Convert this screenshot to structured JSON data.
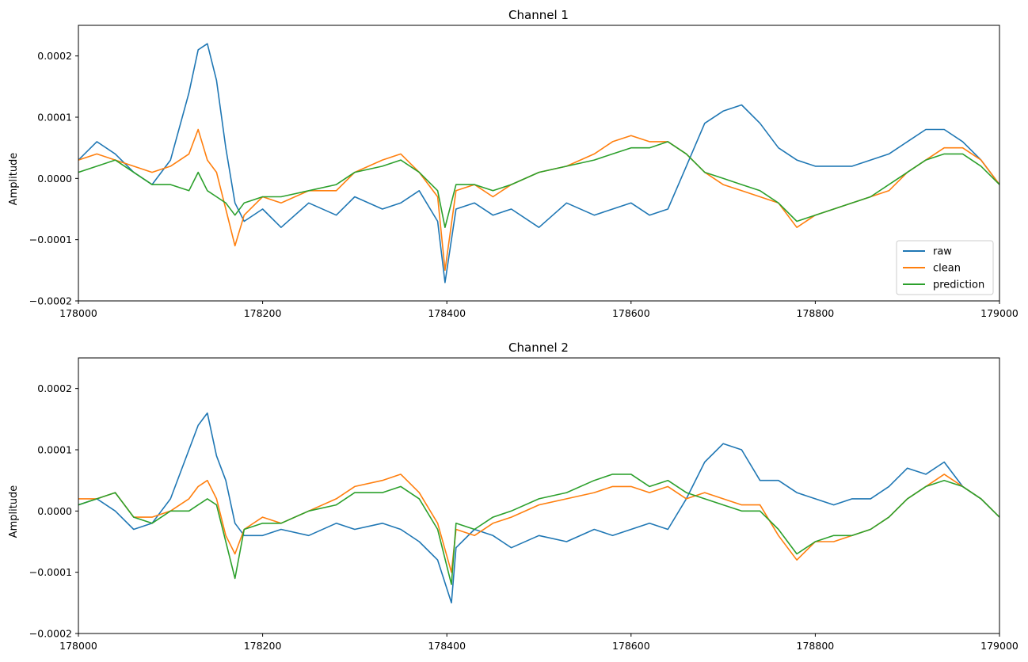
{
  "chart_data": [
    {
      "type": "line",
      "title": "Channel 1",
      "xlabel": "",
      "ylabel": "Amplitude",
      "xlim": [
        178000,
        179000
      ],
      "ylim": [
        -0.0002,
        0.00025
      ],
      "xticks": [
        178000,
        178200,
        178400,
        178600,
        178800,
        179000
      ],
      "xtick_labels": [
        "178000",
        "178200",
        "178400",
        "178600",
        "178800",
        "179000"
      ],
      "yticks": [
        -0.0002,
        -0.0001,
        0,
        0.0001,
        0.0002
      ],
      "ytick_labels": [
        "−0.0002",
        "−0.0001",
        "0.0000",
        "0.0001",
        "0.0002"
      ],
      "grid": false,
      "legend": {
        "placement": "lower-right",
        "entries": [
          "raw",
          "clean",
          "prediction"
        ]
      },
      "x": [
        178000,
        178020,
        178040,
        178060,
        178080,
        178100,
        178120,
        178130,
        178140,
        178150,
        178160,
        178170,
        178180,
        178200,
        178220,
        178250,
        178280,
        178300,
        178330,
        178350,
        178370,
        178390,
        178398,
        178410,
        178430,
        178450,
        178470,
        178500,
        178530,
        178560,
        178580,
        178600,
        178620,
        178640,
        178660,
        178680,
        178700,
        178720,
        178740,
        178760,
        178780,
        178800,
        178820,
        178840,
        178860,
        178880,
        178900,
        178920,
        178940,
        178960,
        178980,
        179000
      ],
      "series": [
        {
          "name": "raw",
          "color": "#1f77b4",
          "values": [
            3e-05,
            6e-05,
            4e-05,
            1e-05,
            -1e-05,
            3e-05,
            0.00014,
            0.00021,
            0.00022,
            0.00016,
            5e-05,
            -4e-05,
            -7e-05,
            -5e-05,
            -8e-05,
            -4e-05,
            -6e-05,
            -3e-05,
            -5e-05,
            -4e-05,
            -2e-05,
            -7e-05,
            -0.00017,
            -5e-05,
            -4e-05,
            -6e-05,
            -5e-05,
            -8e-05,
            -4e-05,
            -6e-05,
            -5e-05,
            -4e-05,
            -6e-05,
            -5e-05,
            2e-05,
            9e-05,
            0.00011,
            0.00012,
            9e-05,
            5e-05,
            3e-05,
            2e-05,
            2e-05,
            2e-05,
            3e-05,
            4e-05,
            6e-05,
            8e-05,
            8e-05,
            6e-05,
            3e-05,
            -1e-05
          ]
        },
        {
          "name": "clean",
          "color": "#ff7f0e",
          "values": [
            3e-05,
            4e-05,
            3e-05,
            2e-05,
            1e-05,
            2e-05,
            4e-05,
            8e-05,
            3e-05,
            1e-05,
            -5e-05,
            -0.00011,
            -6e-05,
            -3e-05,
            -4e-05,
            -2e-05,
            -2e-05,
            1e-05,
            3e-05,
            4e-05,
            1e-05,
            -3e-05,
            -0.00015,
            -2e-05,
            -1e-05,
            -3e-05,
            -1e-05,
            1e-05,
            2e-05,
            4e-05,
            6e-05,
            7e-05,
            6e-05,
            6e-05,
            4e-05,
            1e-05,
            -1e-05,
            -2e-05,
            -3e-05,
            -4e-05,
            -8e-05,
            -6e-05,
            -5e-05,
            -4e-05,
            -3e-05,
            -2e-05,
            1e-05,
            3e-05,
            5e-05,
            5e-05,
            3e-05,
            -1e-05
          ]
        },
        {
          "name": "prediction",
          "color": "#2ca02c",
          "values": [
            1e-05,
            2e-05,
            3e-05,
            1e-05,
            -1e-05,
            -1e-05,
            -2e-05,
            1e-05,
            -2e-05,
            -3e-05,
            -4e-05,
            -6e-05,
            -4e-05,
            -3e-05,
            -3e-05,
            -2e-05,
            -1e-05,
            1e-05,
            2e-05,
            3e-05,
            1e-05,
            -2e-05,
            -8e-05,
            -1e-05,
            -1e-05,
            -2e-05,
            -1e-05,
            1e-05,
            2e-05,
            3e-05,
            4e-05,
            5e-05,
            5e-05,
            6e-05,
            4e-05,
            1e-05,
            0.0,
            -1e-05,
            -2e-05,
            -4e-05,
            -7e-05,
            -6e-05,
            -5e-05,
            -4e-05,
            -3e-05,
            -1e-05,
            1e-05,
            3e-05,
            4e-05,
            4e-05,
            2e-05,
            -1e-05
          ]
        }
      ]
    },
    {
      "type": "line",
      "title": "Channel 2",
      "xlabel": "",
      "ylabel": "Amplitude",
      "xlim": [
        178000,
        179000
      ],
      "ylim": [
        -0.0002,
        0.00025
      ],
      "xticks": [
        178000,
        178200,
        178400,
        178600,
        178800,
        179000
      ],
      "xtick_labels": [
        "178000",
        "178200",
        "178400",
        "178600",
        "178800",
        "179000"
      ],
      "yticks": [
        -0.0002,
        -0.0001,
        0,
        0.0001,
        0.0002
      ],
      "ytick_labels": [
        "−0.0002",
        "−0.0001",
        "0.0000",
        "0.0001",
        "0.0002"
      ],
      "grid": false,
      "x": [
        178000,
        178020,
        178040,
        178060,
        178080,
        178100,
        178120,
        178130,
        178140,
        178150,
        178160,
        178170,
        178180,
        178200,
        178220,
        178250,
        178280,
        178300,
        178330,
        178350,
        178370,
        178390,
        178405,
        178410,
        178430,
        178450,
        178470,
        178500,
        178530,
        178560,
        178580,
        178600,
        178620,
        178640,
        178660,
        178680,
        178700,
        178720,
        178740,
        178760,
        178780,
        178800,
        178820,
        178840,
        178860,
        178880,
        178900,
        178920,
        178940,
        178960,
        178980,
        179000
      ],
      "series": [
        {
          "name": "raw",
          "color": "#1f77b4",
          "values": [
            1e-05,
            2e-05,
            0.0,
            -3e-05,
            -2e-05,
            2e-05,
            0.0001,
            0.00014,
            0.00016,
            9e-05,
            5e-05,
            -2e-05,
            -4e-05,
            -4e-05,
            -3e-05,
            -4e-05,
            -2e-05,
            -3e-05,
            -2e-05,
            -3e-05,
            -5e-05,
            -8e-05,
            -0.00015,
            -6e-05,
            -3e-05,
            -4e-05,
            -6e-05,
            -4e-05,
            -5e-05,
            -3e-05,
            -4e-05,
            -3e-05,
            -2e-05,
            -3e-05,
            2e-05,
            8e-05,
            0.00011,
            0.0001,
            5e-05,
            5e-05,
            3e-05,
            2e-05,
            1e-05,
            2e-05,
            2e-05,
            4e-05,
            7e-05,
            6e-05,
            8e-05,
            4e-05,
            2e-05,
            -1e-05
          ]
        },
        {
          "name": "clean",
          "color": "#ff7f0e",
          "values": [
            2e-05,
            2e-05,
            3e-05,
            -1e-05,
            -1e-05,
            0.0,
            2e-05,
            4e-05,
            5e-05,
            2e-05,
            -4e-05,
            -7e-05,
            -3e-05,
            -1e-05,
            -2e-05,
            0.0,
            2e-05,
            4e-05,
            5e-05,
            6e-05,
            3e-05,
            -2e-05,
            -0.0001,
            -3e-05,
            -4e-05,
            -2e-05,
            -1e-05,
            1e-05,
            2e-05,
            3e-05,
            4e-05,
            4e-05,
            3e-05,
            4e-05,
            2e-05,
            3e-05,
            2e-05,
            1e-05,
            1e-05,
            -4e-05,
            -8e-05,
            -5e-05,
            -5e-05,
            -4e-05,
            -3e-05,
            -1e-05,
            2e-05,
            4e-05,
            6e-05,
            4e-05,
            2e-05,
            -1e-05
          ]
        },
        {
          "name": "prediction",
          "color": "#2ca02c",
          "values": [
            1e-05,
            2e-05,
            3e-05,
            -1e-05,
            -2e-05,
            0.0,
            0.0,
            1e-05,
            2e-05,
            1e-05,
            -5e-05,
            -0.00011,
            -3e-05,
            -2e-05,
            -2e-05,
            0.0,
            1e-05,
            3e-05,
            3e-05,
            4e-05,
            2e-05,
            -3e-05,
            -0.00012,
            -2e-05,
            -3e-05,
            -1e-05,
            0.0,
            2e-05,
            3e-05,
            5e-05,
            6e-05,
            6e-05,
            4e-05,
            5e-05,
            3e-05,
            2e-05,
            1e-05,
            0.0,
            0.0,
            -3e-05,
            -7e-05,
            -5e-05,
            -4e-05,
            -4e-05,
            -3e-05,
            -1e-05,
            2e-05,
            4e-05,
            5e-05,
            4e-05,
            2e-05,
            -1e-05
          ]
        }
      ]
    }
  ]
}
